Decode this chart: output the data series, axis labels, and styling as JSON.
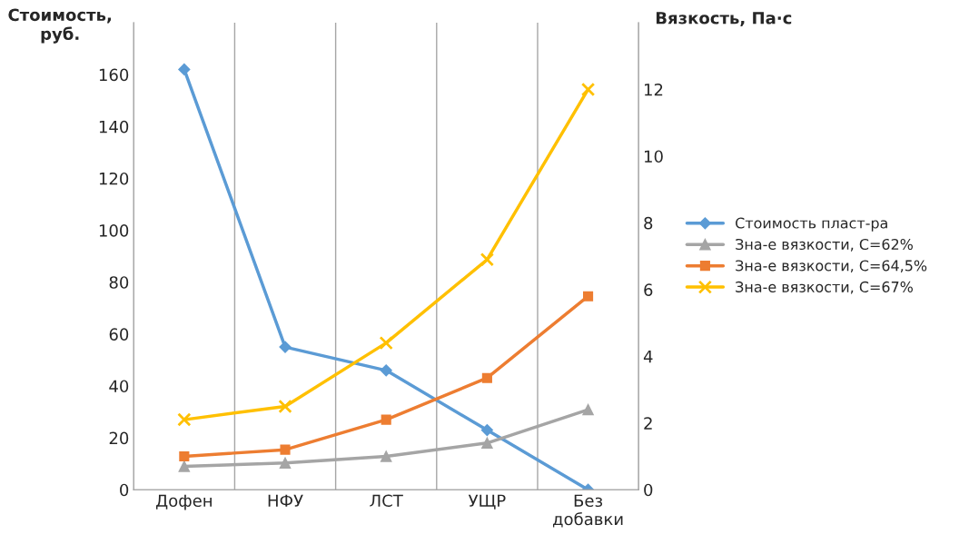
{
  "chart_data": {
    "type": "line",
    "categories": [
      "Дофен",
      "НФУ",
      "ЛСТ",
      "УЩР",
      "Без\nдобавки"
    ],
    "ylabel": "Стоимость,\nруб.",
    "y2label": "Вязкость, Па·с",
    "ylim": [
      0,
      180
    ],
    "yticks": [
      0,
      20,
      40,
      60,
      80,
      100,
      120,
      140,
      160
    ],
    "y2lim": [
      0,
      14
    ],
    "y2ticks": [
      0,
      2,
      4,
      6,
      8,
      10,
      12
    ],
    "grid": "x",
    "legend": "right",
    "series": [
      {
        "name": "Стоимость пласт-ра",
        "color": "#5b9bd5",
        "marker": "diamond",
        "values": [
          162,
          55,
          46,
          23,
          0
        ]
      },
      {
        "name": "Зна-е вязкости, С=62%",
        "color": "#a5a5a5",
        "marker": "triangle",
        "axis": "y2",
        "values": [
          0.7,
          0.8,
          1.0,
          1.4,
          2.4
        ]
      },
      {
        "name": "Зна-е вязкости, С=64,5%",
        "color": "#ed7d31",
        "marker": "square",
        "axis": "y2",
        "values": [
          1.0,
          1.2,
          2.1,
          3.35,
          5.8
        ]
      },
      {
        "name": "Зна-е вязкости, С=67%",
        "color": "#ffc000",
        "marker": "cross",
        "axis": "y2",
        "values": [
          2.1,
          2.5,
          4.4,
          6.9,
          12.0
        ]
      }
    ]
  }
}
